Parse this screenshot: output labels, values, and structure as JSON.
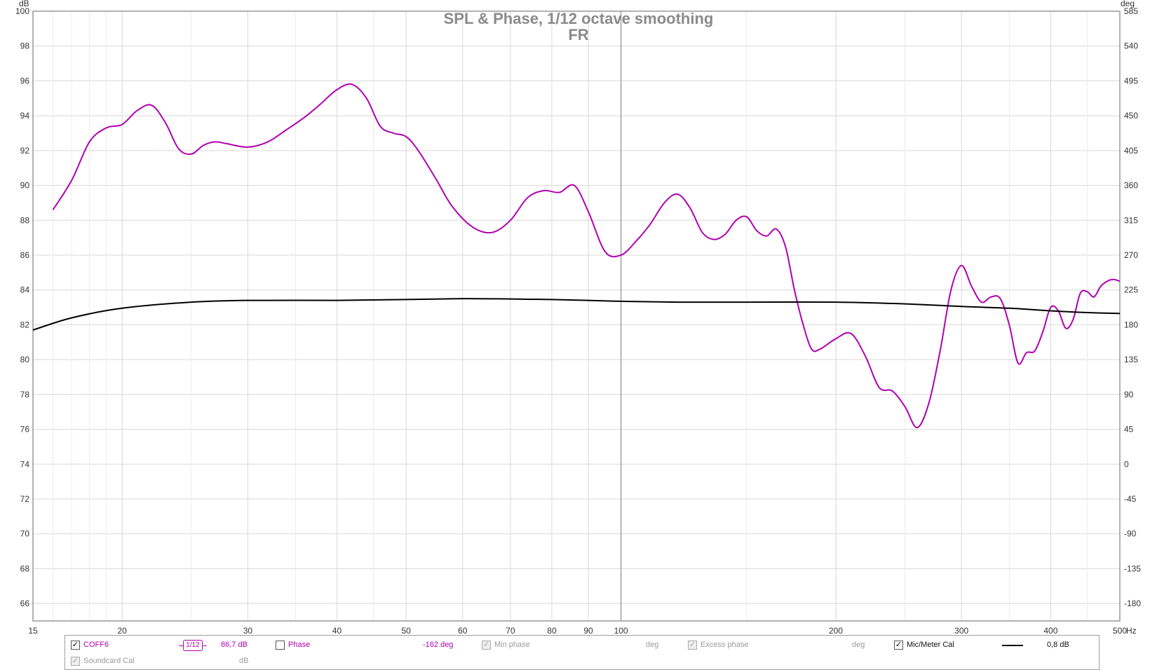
{
  "chart_data": {
    "type": "line",
    "title": "SPL & Phase, 1/12 octave smoothing",
    "subtitle": "FR",
    "y_left_unit": "dB",
    "y_right_unit": "deg",
    "x_unit": "Hz",
    "x_scale": "log",
    "xlim": [
      15,
      500
    ],
    "ylim": [
      65,
      100
    ],
    "y_right_lim": [
      -202.5,
      585
    ],
    "x_ticks": [
      "15",
      "20",
      "30",
      "40",
      "50",
      "60",
      "70",
      "80",
      "90",
      "100",
      "200",
      "300",
      "400",
      "500"
    ],
    "y_left_ticks": [
      "100",
      "98",
      "96",
      "94",
      "92",
      "90",
      "88",
      "86",
      "84",
      "82",
      "80",
      "78",
      "76",
      "74",
      "72",
      "70",
      "68",
      "66"
    ],
    "y_right_ticks": [
      "585",
      "540",
      "495",
      "450",
      "405",
      "360",
      "315",
      "270",
      "225",
      "180",
      "135",
      "90",
      "45",
      "0",
      "-45",
      "-90",
      "-135",
      "-180"
    ],
    "grid": true,
    "series": [
      {
        "name": "COFF6",
        "color": "#b000b0",
        "x": [
          16,
          17,
          18,
          19,
          20,
          21,
          22,
          23,
          24,
          25,
          26,
          27,
          28,
          30,
          32,
          34,
          36,
          38,
          40,
          42,
          44,
          46,
          48,
          50,
          52,
          55,
          58,
          62,
          66,
          70,
          74,
          78,
          82,
          86,
          90,
          95,
          100,
          105,
          110,
          115,
          120,
          125,
          130,
          135,
          140,
          145,
          150,
          155,
          160,
          165,
          170,
          175,
          180,
          185,
          190,
          200,
          210,
          220,
          230,
          240,
          250,
          260,
          270,
          280,
          290,
          300,
          310,
          320,
          330,
          340,
          350,
          360,
          370,
          380,
          390,
          400,
          410,
          420,
          430,
          440,
          450,
          460,
          470,
          480,
          490,
          500
        ],
        "values": [
          88.6,
          90.3,
          92.5,
          93.3,
          93.5,
          94.3,
          94.6,
          93.6,
          92.1,
          91.8,
          92.3,
          92.5,
          92.4,
          92.2,
          92.5,
          93.2,
          93.9,
          94.7,
          95.5,
          95.8,
          95.0,
          93.4,
          93.0,
          92.8,
          92.0,
          90.4,
          88.8,
          87.6,
          87.3,
          88.0,
          89.3,
          89.7,
          89.6,
          90.0,
          88.5,
          86.2,
          86.0,
          86.8,
          87.8,
          89.0,
          89.5,
          88.7,
          87.3,
          86.9,
          87.2,
          88.0,
          88.2,
          87.4,
          87.1,
          87.5,
          86.5,
          84.0,
          82.0,
          80.6,
          80.6,
          81.2,
          81.5,
          80.2,
          78.4,
          78.2,
          77.3,
          76.1,
          77.5,
          80.5,
          84.0,
          85.4,
          84.2,
          83.3,
          83.6,
          83.5,
          82.0,
          79.8,
          80.4,
          80.5,
          81.6,
          83.0,
          82.8,
          81.8,
          82.3,
          83.8,
          83.9,
          83.6,
          84.2,
          84.5,
          84.6,
          84.5
        ]
      },
      {
        "name": "Mic/Meter Cal",
        "color": "#000000",
        "x": [
          15,
          17,
          20,
          25,
          30,
          40,
          50,
          60,
          70,
          80,
          90,
          100,
          120,
          150,
          200,
          250,
          300,
          350,
          400,
          450,
          500
        ],
        "values": [
          81.7,
          82.4,
          82.95,
          83.3,
          83.4,
          83.4,
          83.45,
          83.5,
          83.48,
          83.45,
          83.4,
          83.35,
          83.3,
          83.3,
          83.3,
          83.2,
          83.05,
          82.95,
          82.8,
          82.7,
          82.65
        ]
      }
    ]
  },
  "legend": {
    "row1": {
      "coff6_label": "COFF6",
      "smoothing_badge": "1/12",
      "spl_value": "86,7 dB",
      "phase_label": "Phase",
      "phase_value": "-162 deg",
      "min_phase_label": "Min phase",
      "min_phase_unit": "deg",
      "excess_phase_label": "Excess phase",
      "excess_phase_unit": "deg",
      "mic_cal_label": "Mic/Meter Cal",
      "mic_cal_value": "0,8 dB"
    },
    "row2": {
      "soundcard_label": "Soundcard Cal",
      "soundcard_unit": "dB"
    },
    "checks": {
      "coff6": true,
      "phase": false,
      "min_phase": true,
      "excess_phase": true,
      "mic_cal": true,
      "soundcard": true
    }
  }
}
